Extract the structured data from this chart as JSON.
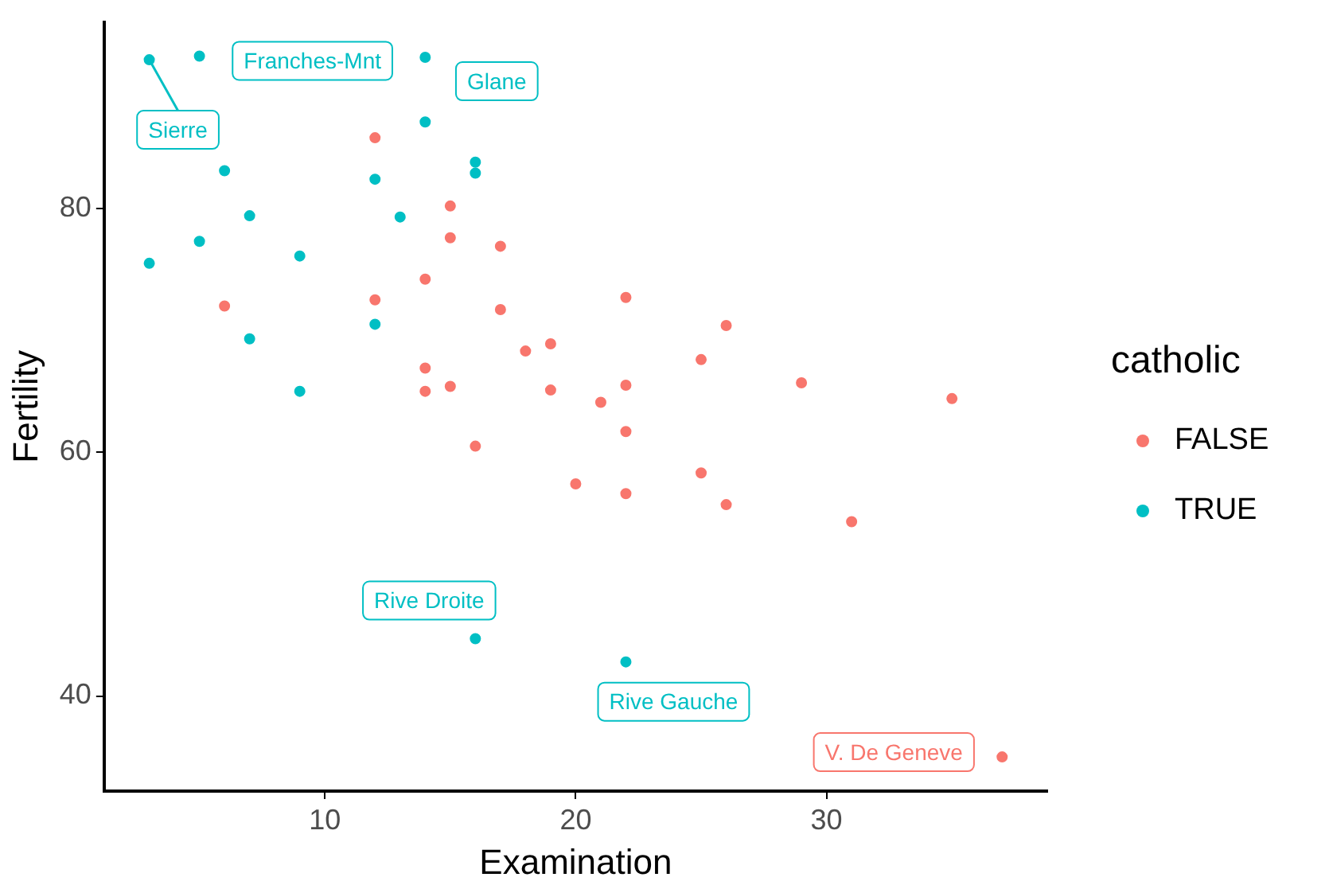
{
  "chart_data": {
    "type": "scatter",
    "xlabel": "Examination",
    "ylabel": "Fertility",
    "legend_title": "catholic",
    "legend": "right",
    "grid": false,
    "marker": "circle",
    "xlim": [
      1.2,
      38.8
    ],
    "xticks": [
      10,
      20,
      30
    ],
    "ylim": [
      32.2,
      95.3
    ],
    "yticks": [
      40,
      60,
      80
    ],
    "series": [
      {
        "name": "FALSE",
        "color": "#f8766d",
        "x": [
          15,
          12,
          17,
          21,
          14,
          19,
          22,
          18,
          17,
          26,
          31,
          19,
          22,
          14,
          22,
          20,
          12,
          14,
          6,
          16,
          25,
          15,
          26,
          29,
          22,
          35,
          15,
          25,
          37
        ],
        "values": [
          80.2,
          85.8,
          76.9,
          64.1,
          66.9,
          68.9,
          61.7,
          68.3,
          71.7,
          55.7,
          54.3,
          65.1,
          65.5,
          65.0,
          56.6,
          57.4,
          72.5,
          74.2,
          72.0,
          60.5,
          58.3,
          65.4,
          70.4,
          65.7,
          72.7,
          64.4,
          77.6,
          67.6,
          35.0
        ]
      },
      {
        "name": "TRUE",
        "color": "#00bfc4",
        "x": [
          6,
          5,
          9,
          16,
          14,
          12,
          16,
          14,
          3,
          7,
          5,
          12,
          7,
          9,
          3,
          13,
          16,
          22
        ],
        "values": [
          83.1,
          92.5,
          76.1,
          83.8,
          92.4,
          82.4,
          82.9,
          87.1,
          75.5,
          69.3,
          77.3,
          70.5,
          79.4,
          65.0,
          92.2,
          79.3,
          44.7,
          42.8
        ]
      }
    ],
    "annotations": [
      {
        "text": "Sierre",
        "x": 3,
        "y": 92.2
      },
      {
        "text": "Franches-Mnt",
        "x": 5,
        "y": 92.5
      },
      {
        "text": "Glane",
        "x": 14,
        "y": 92.4
      },
      {
        "text": "Rive Droite",
        "x": 16,
        "y": 44.7
      },
      {
        "text": "Rive Gauche",
        "x": 22,
        "y": 42.8
      },
      {
        "text": "V. De Geneve",
        "x": 37,
        "y": 35.0
      }
    ]
  }
}
